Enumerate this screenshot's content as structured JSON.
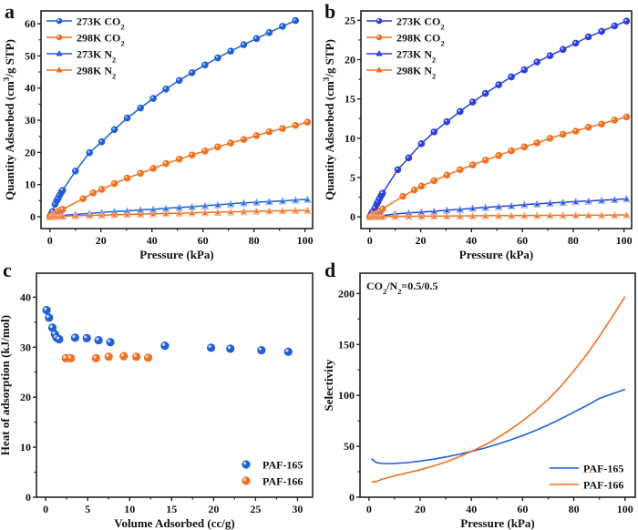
{
  "colors": {
    "blue": "#1f5fd6",
    "blue_b": "#2b3fd9",
    "orange": "#f07020",
    "light_blue": "#8ab4f0",
    "light_orange": "#f7b48a"
  },
  "chart_data": [
    {
      "panel": "a",
      "type": "line",
      "title": "",
      "xlabel": "Pressure (kPa)",
      "ylabel": "Quantity Adsorbed (cm³/g STP)",
      "xlim": [
        -3.5,
        103
      ],
      "ylim": [
        -3.7,
        64
      ],
      "xticks": [
        0,
        20,
        40,
        60,
        80,
        100
      ],
      "yticks": [
        0,
        10,
        20,
        30,
        40,
        50,
        60
      ],
      "legend_position": "top-left",
      "series": [
        {
          "name": "273K CO₂",
          "marker": "circle",
          "color": "blue",
          "x": [
            0,
            0.5,
            1,
            2,
            2.7,
            3.2,
            3.8,
            4.5,
            5,
            10,
            15.5,
            20.3,
            25.3,
            30.3,
            35.5,
            40.5,
            45.5,
            50.7,
            55.7,
            60.8,
            65.8,
            70.9,
            76,
            81,
            86,
            91.2,
            96.3
          ],
          "y": [
            0,
            0.8,
            1.6,
            3.9,
            5.0,
            5.7,
            6.7,
            7.6,
            8.2,
            14.2,
            19.9,
            23.3,
            27.1,
            30.7,
            33.8,
            36.8,
            39.7,
            42.4,
            44.8,
            47.2,
            49.4,
            51.5,
            53.5,
            55.4,
            57.3,
            59.2,
            61.0
          ]
        },
        {
          "name": "298K CO₂",
          "marker": "circle",
          "color": "orange",
          "x": [
            0,
            0.5,
            1,
            2,
            3,
            4,
            5,
            13,
            17,
            20.3,
            25.3,
            30.3,
            35.5,
            40.5,
            45.5,
            50.7,
            55.7,
            60.8,
            65.8,
            70.9,
            76,
            81,
            86,
            91.2,
            96.3,
            101
          ],
          "y": [
            0,
            0.3,
            0.6,
            1.0,
            1.5,
            2.0,
            2.3,
            5.6,
            7.4,
            8.5,
            10.3,
            12.0,
            13.5,
            15.0,
            16.5,
            17.9,
            19.2,
            20.4,
            21.7,
            22.9,
            24.0,
            25.2,
            26.4,
            27.4,
            28.4,
            29.4
          ]
        },
        {
          "name": "273K N₂",
          "marker": "triangle",
          "color": "blue",
          "x": [
            0,
            1,
            2,
            3,
            4,
            5,
            10,
            15.5,
            20.3,
            25.3,
            30.3,
            35.5,
            40.5,
            45.5,
            50.7,
            55.7,
            60.8,
            65.8,
            70.9,
            76,
            81,
            86,
            91.2,
            96.3,
            101
          ],
          "y": [
            0,
            0.1,
            0.2,
            0.3,
            0.35,
            0.4,
            0.7,
            1.0,
            1.3,
            1.6,
            1.8,
            2.1,
            2.3,
            2.6,
            2.9,
            3.1,
            3.4,
            3.7,
            4.0,
            4.3,
            4.5,
            4.7,
            4.9,
            5.2,
            5.4
          ]
        },
        {
          "name": "298K N₂",
          "marker": "triangle",
          "color": "orange",
          "x": [
            0,
            1,
            2,
            3,
            4,
            5,
            10,
            15.5,
            20.3,
            25.3,
            30.3,
            35.5,
            40.5,
            45.5,
            50.7,
            55.7,
            60.8,
            65.8,
            70.9,
            76,
            81,
            86,
            91.2,
            96.3,
            101
          ],
          "y": [
            0,
            0.05,
            0.08,
            0.1,
            0.12,
            0.15,
            0.3,
            0.4,
            0.5,
            0.6,
            0.7,
            0.8,
            0.9,
            1.0,
            1.1,
            1.2,
            1.3,
            1.4,
            1.5,
            1.6,
            1.7,
            1.8,
            1.85,
            1.95,
            2.0
          ]
        }
      ]
    },
    {
      "panel": "b",
      "type": "line",
      "title": "",
      "xlabel": "Pressure (kPa)",
      "ylabel": "Quantity Adsorbed (cm³/g STP)",
      "xlim": [
        -3.5,
        103
      ],
      "ylim": [
        -1.5,
        26.2
      ],
      "xticks": [
        0,
        20,
        40,
        60,
        80,
        100
      ],
      "yticks": [
        0,
        5,
        10,
        15,
        20,
        25
      ],
      "legend_position": "top-left",
      "series": [
        {
          "name": "273K CO₂",
          "marker": "circle",
          "color": "blue_b",
          "x": [
            0,
            0.5,
            1,
            2,
            2.7,
            3.2,
            3.8,
            4.5,
            5,
            11,
            15.3,
            20.3,
            25.3,
            30.3,
            35.5,
            40.5,
            45.5,
            50.7,
            55.7,
            60.8,
            65.8,
            70.9,
            76,
            81,
            86,
            91.2,
            96.3,
            101
          ],
          "y": [
            0,
            0.3,
            0.6,
            1.1,
            1.6,
            1.9,
            2.3,
            2.7,
            3.0,
            6.0,
            7.5,
            9.3,
            10.8,
            12.1,
            13.4,
            14.6,
            15.7,
            16.8,
            17.8,
            18.7,
            19.7,
            20.5,
            21.3,
            22.1,
            22.9,
            23.6,
            24.3,
            24.9
          ]
        },
        {
          "name": "298K CO₂",
          "marker": "circle",
          "color": "orange",
          "x": [
            0,
            0.5,
            1,
            2,
            3,
            4,
            5,
            13,
            17.5,
            20.3,
            25.3,
            30.3,
            35.5,
            40.5,
            45.5,
            50.7,
            55.7,
            60.8,
            65.8,
            70.9,
            76,
            81,
            86,
            91.2,
            96.3,
            101
          ],
          "y": [
            0,
            0.1,
            0.2,
            0.35,
            0.5,
            0.7,
            1.0,
            2.6,
            3.4,
            3.9,
            4.6,
            5.3,
            6.0,
            6.6,
            7.2,
            7.8,
            8.4,
            8.9,
            9.4,
            10.0,
            10.5,
            10.9,
            11.4,
            11.8,
            12.3,
            12.7
          ]
        },
        {
          "name": "273K N₂",
          "marker": "triangle",
          "color": "blue_b",
          "x": [
            0,
            1,
            2,
            3,
            4,
            5,
            10,
            15.3,
            20.3,
            25.3,
            30.3,
            35.5,
            40.5,
            45.5,
            50.7,
            55.7,
            60.8,
            65.8,
            70.9,
            76,
            81,
            86,
            91.2,
            96.3,
            101
          ],
          "y": [
            0,
            0.05,
            0.08,
            0.1,
            0.12,
            0.15,
            0.35,
            0.5,
            0.6,
            0.7,
            0.85,
            0.95,
            1.1,
            1.2,
            1.3,
            1.4,
            1.55,
            1.65,
            1.75,
            1.85,
            1.95,
            2.0,
            2.1,
            2.2,
            2.3
          ]
        },
        {
          "name": "298K N₂",
          "marker": "triangle",
          "color": "orange",
          "x": [
            0,
            1,
            2,
            3,
            4,
            5,
            10,
            15.3,
            20.3,
            25.3,
            30.3,
            35.5,
            40.5,
            45.5,
            50.7,
            55.7,
            60.8,
            65.8,
            70.9,
            76,
            81,
            86,
            91.2,
            96.3,
            101
          ],
          "y": [
            0,
            0.01,
            0.02,
            0.03,
            0.03,
            0.04,
            0.06,
            0.07,
            0.08,
            0.09,
            0.1,
            0.11,
            0.12,
            0.13,
            0.14,
            0.15,
            0.16,
            0.17,
            0.18,
            0.19,
            0.2,
            0.21,
            0.22,
            0.23,
            0.24
          ]
        }
      ]
    },
    {
      "panel": "c",
      "type": "scatter",
      "title": "",
      "xlabel": "Volume Adsorbed (cc/g)",
      "ylabel": "Heat of adsorption (kJ/mol)",
      "xlim": [
        -1.1,
        31.8
      ],
      "ylim": [
        0,
        44.8
      ],
      "xticks": [
        0,
        5,
        10,
        15,
        20,
        25,
        30
      ],
      "yticks": [
        0,
        10,
        20,
        30,
        40
      ],
      "legend_position": "bottom-right",
      "series": [
        {
          "name": "PAF-165",
          "color": "blue",
          "x": [
            0.1,
            0.4,
            0.8,
            1.1,
            1.3,
            1.6,
            3.5,
            4.9,
            6.3,
            7.7,
            14.2,
            19.7,
            22.0,
            25.7,
            28.9
          ],
          "y": [
            37.4,
            35.9,
            33.9,
            32.6,
            31.9,
            31.6,
            31.9,
            31.8,
            31.4,
            31.0,
            30.3,
            29.9,
            29.7,
            29.4,
            29.1
          ]
        },
        {
          "name": "PAF-166",
          "color": "orange",
          "x": [
            2.4,
            3.0,
            6.0,
            7.5,
            9.3,
            10.8,
            12.2
          ],
          "y": [
            27.8,
            27.8,
            27.8,
            28.1,
            28.2,
            28.1,
            27.9
          ]
        }
      ]
    },
    {
      "panel": "d",
      "type": "line",
      "title": "",
      "annotation": "CO₂/N₂=0.5/0.5",
      "xlabel": "Pressure (kPa)",
      "ylabel": "Selectivity",
      "xlim": [
        -3.5,
        104
      ],
      "ylim": [
        0,
        220
      ],
      "xticks": [
        0,
        20,
        40,
        60,
        80,
        100
      ],
      "yticks": [
        0,
        50,
        100,
        150,
        200
      ],
      "legend_position": "bottom-right",
      "series": [
        {
          "name": "PAF-165",
          "color": "blue",
          "x": [
            1,
            2,
            3,
            5,
            8,
            10,
            15,
            20,
            25,
            30,
            35,
            40,
            45,
            50,
            55,
            60,
            65,
            70,
            75,
            80,
            85,
            90,
            95,
            100
          ],
          "y": [
            38,
            35.5,
            34,
            33.2,
            33.1,
            33.2,
            34,
            35.5,
            37.3,
            39.5,
            42,
            45,
            48.2,
            52,
            56,
            60.5,
            65.5,
            71,
            77,
            83.5,
            90,
            97,
            101.5,
            106
          ]
        },
        {
          "name": "PAF-166",
          "color": "orange",
          "x": [
            1,
            2,
            3,
            5,
            10,
            15,
            20,
            25,
            30,
            35,
            40,
            45,
            50,
            55,
            60,
            65,
            70,
            75,
            80,
            85,
            90,
            95,
            100
          ],
          "y": [
            15,
            15,
            15.5,
            17.5,
            21,
            24,
            27,
            30.5,
            34.5,
            39.5,
            45,
            51,
            58,
            66,
            75,
            85,
            96,
            109,
            124,
            140,
            158,
            177,
            197
          ]
        }
      ]
    }
  ]
}
